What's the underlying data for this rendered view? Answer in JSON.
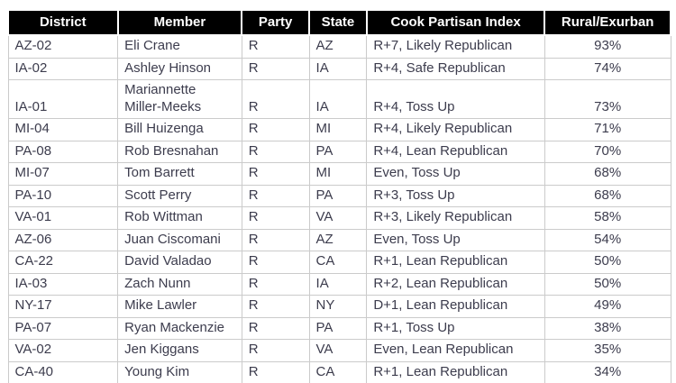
{
  "chart_data": {
    "type": "table",
    "columns": [
      "District",
      "Member",
      "Party",
      "State",
      "Cook Partisan Index",
      "Rural/Exurban"
    ],
    "column_keys": [
      "district",
      "member",
      "party",
      "state",
      "cook-partisan-index",
      "rural-exurban"
    ],
    "rows": [
      [
        "AZ-02",
        "Eli Crane",
        "R",
        "AZ",
        "R+7, Likely Republican",
        "93%"
      ],
      [
        "IA-02",
        "Ashley Hinson",
        "R",
        "IA",
        "R+4, Safe Republican",
        "74%"
      ],
      [
        "IA-01",
        "Mariannette Miller-Meeks",
        "R",
        "IA",
        "R+4, Toss Up",
        "73%"
      ],
      [
        "MI-04",
        "Bill Huizenga",
        "R",
        "MI",
        "R+4, Likely Republican",
        "71%"
      ],
      [
        "PA-08",
        "Rob Bresnahan",
        "R",
        "PA",
        "R+4, Lean Republican",
        "70%"
      ],
      [
        "MI-07",
        "Tom Barrett",
        "R",
        "MI",
        "Even, Toss Up",
        "68%"
      ],
      [
        "PA-10",
        "Scott Perry",
        "R",
        "PA",
        "R+3, Toss Up",
        "68%"
      ],
      [
        "VA-01",
        "Rob Wittman",
        "R",
        "VA",
        "R+3, Likely Republican",
        "58%"
      ],
      [
        "AZ-06",
        "Juan Ciscomani",
        "R",
        "AZ",
        "Even, Toss Up",
        "54%"
      ],
      [
        "CA-22",
        "David Valadao",
        "R",
        "CA",
        "R+1, Lean Republican",
        "50%"
      ],
      [
        "IA-03",
        "Zach Nunn",
        "R",
        "IA",
        "R+2, Lean Republican",
        "50%"
      ],
      [
        "NY-17",
        "Mike Lawler",
        "R",
        "NY",
        "D+1, Lean Republican",
        "49%"
      ],
      [
        "PA-07",
        "Ryan Mackenzie",
        "R",
        "PA",
        "R+1, Toss Up",
        "38%"
      ],
      [
        "VA-02",
        "Jen Kiggans",
        "R",
        "VA",
        "Even, Lean Republican",
        "35%"
      ],
      [
        "CA-40",
        "Young Kim",
        "R",
        "CA",
        "R+1, Lean Republican",
        "34%"
      ]
    ]
  },
  "colors": {
    "header_bg": "#000000",
    "header_text": "#ffffff",
    "body_text": "#3c3c4d",
    "border": "#cbcbcb",
    "row_bg": "#ffffff"
  }
}
